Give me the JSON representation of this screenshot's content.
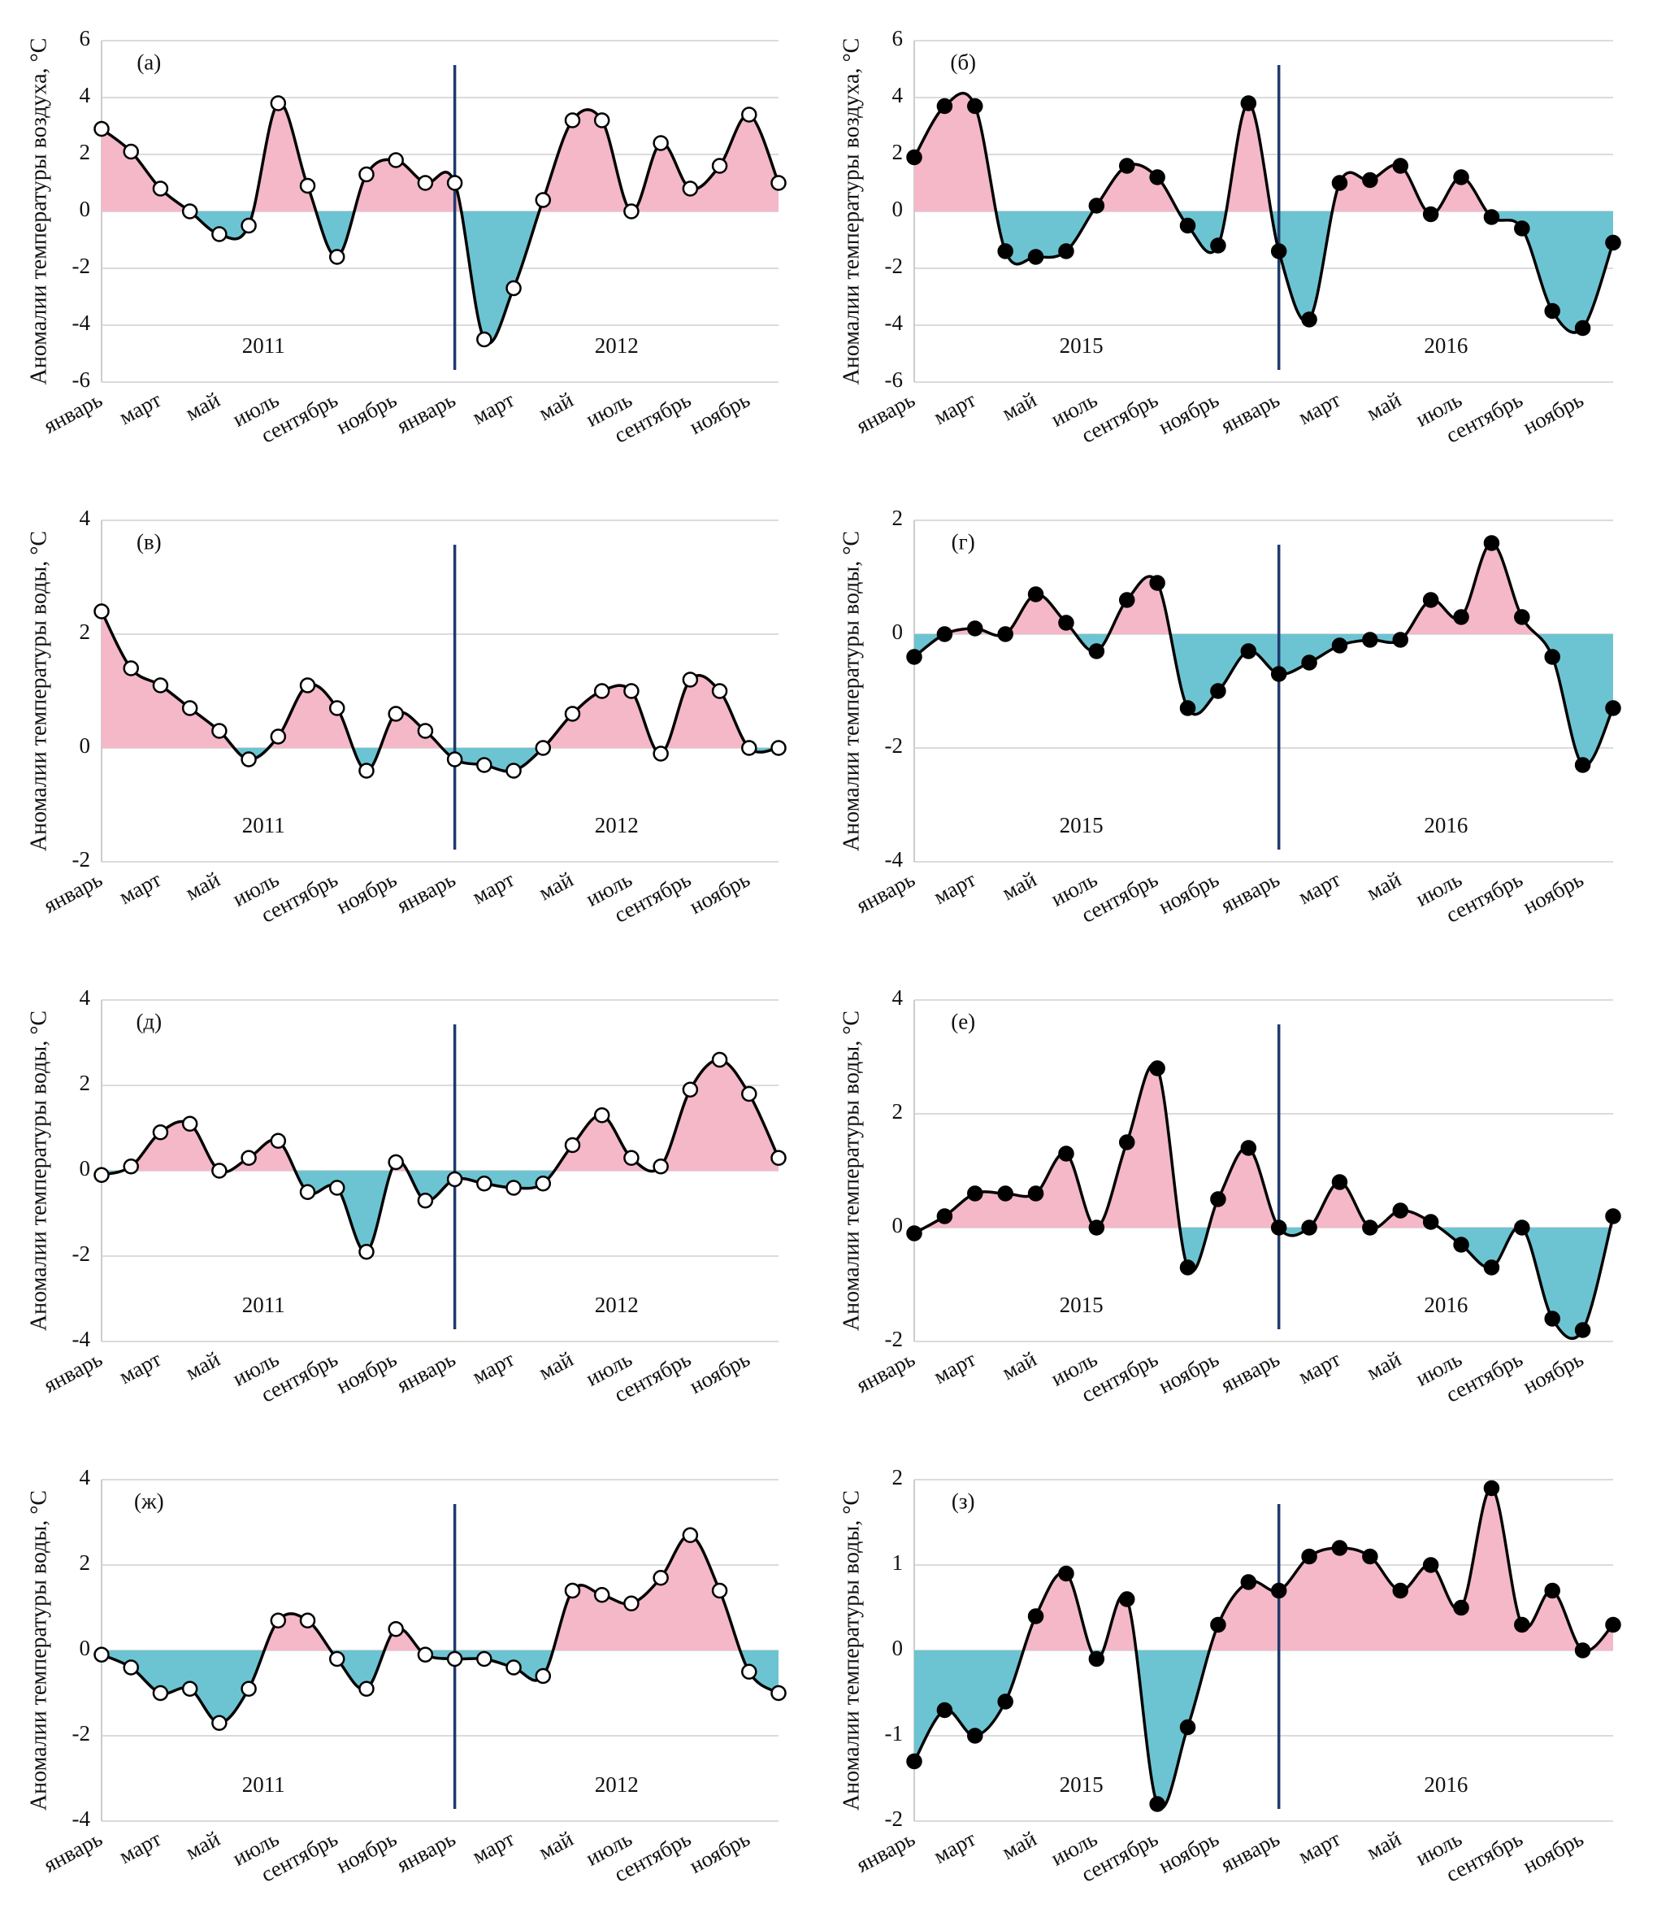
{
  "chart_data": [
    {
      "type": "area",
      "label": "(а)",
      "ylabel": "Аномалии температуры воздуха, °C",
      "year_labels": [
        "2011",
        "2012"
      ],
      "categories": [
        "январь",
        null,
        "март",
        null,
        "май",
        null,
        "июль",
        null,
        "сентябрь",
        null,
        "ноябрь",
        null,
        "январь",
        null,
        "март",
        null,
        "май",
        null,
        "июль",
        null,
        "сентябрь",
        null,
        "ноябрь",
        null
      ],
      "values": [
        2.9,
        2.1,
        0.8,
        0.0,
        -0.8,
        -0.5,
        3.8,
        0.9,
        -1.6,
        1.3,
        1.8,
        1.0,
        1.0,
        -4.5,
        -2.7,
        0.4,
        3.2,
        3.2,
        0.0,
        2.4,
        0.8,
        1.6,
        3.4,
        1.0
      ],
      "ylim": [
        -6,
        6
      ],
      "yticks": [
        -6,
        -4,
        -2,
        0,
        2,
        4,
        6
      ],
      "grid": true,
      "positive_color": "#f4b8c8",
      "negative_color": "#6cc4d2",
      "line_color": "#000000",
      "marker_fill": "#ffffff"
    },
    {
      "type": "area",
      "label": "(б)",
      "ylabel": "Аномалии температуры воздуха, °C",
      "year_labels": [
        "2015",
        "2016"
      ],
      "categories": [
        "январь",
        null,
        "март",
        null,
        "май",
        null,
        "июль",
        null,
        "сентябрь",
        null,
        "ноябрь",
        null,
        "январь",
        null,
        "март",
        null,
        "май",
        null,
        "июль",
        null,
        "сентябрь",
        null,
        "ноябрь",
        null
      ],
      "values": [
        1.9,
        3.7,
        3.7,
        -1.4,
        -1.6,
        -1.4,
        0.2,
        1.6,
        1.2,
        -0.5,
        -1.2,
        3.8,
        -1.4,
        -3.8,
        1.0,
        1.1,
        1.6,
        -0.1,
        1.2,
        -0.2,
        -0.6,
        -3.5,
        -4.1,
        -1.1
      ],
      "ylim": [
        -6,
        6
      ],
      "yticks": [
        -6,
        -4,
        -2,
        0,
        2,
        4,
        6
      ],
      "grid": true,
      "positive_color": "#f4b8c8",
      "negative_color": "#6cc4d2",
      "line_color": "#000000",
      "marker_fill": "#000000"
    },
    {
      "type": "area",
      "label": "(в)",
      "ylabel": "Аномалии температуры воды, °C",
      "year_labels": [
        "2011",
        "2012"
      ],
      "categories": [
        "январь",
        null,
        "март",
        null,
        "май",
        null,
        "июль",
        null,
        "сентябрь",
        null,
        "ноябрь",
        null,
        "январь",
        null,
        "март",
        null,
        "май",
        null,
        "июль",
        null,
        "сентябрь",
        null,
        "ноябрь",
        null
      ],
      "values": [
        2.4,
        1.4,
        1.1,
        0.7,
        0.3,
        -0.2,
        0.2,
        1.1,
        0.7,
        -0.4,
        0.6,
        0.3,
        -0.2,
        -0.3,
        -0.4,
        0.0,
        0.6,
        1.0,
        1.0,
        -0.1,
        1.2,
        1.0,
        0.0,
        0.0
      ],
      "ylim": [
        -2,
        4
      ],
      "yticks": [
        -2,
        0,
        2,
        4
      ],
      "grid": true,
      "positive_color": "#f4b8c8",
      "negative_color": "#6cc4d2",
      "line_color": "#000000",
      "marker_fill": "#ffffff"
    },
    {
      "type": "area",
      "label": "(г)",
      "ylabel": "Аномалии температуры воды, °C",
      "year_labels": [
        "2015",
        "2016"
      ],
      "categories": [
        "январь",
        null,
        "март",
        null,
        "май",
        null,
        "июль",
        null,
        "сентябрь",
        null,
        "ноябрь",
        null,
        "январь",
        null,
        "март",
        null,
        "май",
        null,
        "июль",
        null,
        "сентябрь",
        null,
        "ноябрь",
        null
      ],
      "values": [
        -0.4,
        0.0,
        0.1,
        0.0,
        0.7,
        0.2,
        -0.3,
        0.6,
        0.9,
        -1.3,
        -1.0,
        -0.3,
        -0.7,
        -0.5,
        -0.2,
        -0.1,
        -0.1,
        0.6,
        0.3,
        1.6,
        0.3,
        -0.4,
        -2.3,
        -1.3
      ],
      "ylim": [
        -4,
        2
      ],
      "yticks": [
        -4,
        -2,
        0,
        2
      ],
      "grid": true,
      "positive_color": "#f4b8c8",
      "negative_color": "#6cc4d2",
      "line_color": "#000000",
      "marker_fill": "#000000"
    },
    {
      "type": "area",
      "label": "(д)",
      "ylabel": "Аномалии температуры воды, °C",
      "year_labels": [
        "2011",
        "2012"
      ],
      "categories": [
        "январь",
        null,
        "март",
        null,
        "май",
        null,
        "июль",
        null,
        "сентябрь",
        null,
        "ноябрь",
        null,
        "январь",
        null,
        "март",
        null,
        "май",
        null,
        "июль",
        null,
        "сентябрь",
        null,
        "ноябрь",
        null
      ],
      "values": [
        -0.1,
        0.1,
        0.9,
        1.1,
        0.0,
        0.3,
        0.7,
        -0.5,
        -0.4,
        -1.9,
        0.2,
        -0.7,
        -0.2,
        -0.3,
        -0.4,
        -0.3,
        0.6,
        1.3,
        0.3,
        0.1,
        1.9,
        2.6,
        1.8,
        0.3
      ],
      "ylim": [
        -4,
        4
      ],
      "yticks": [
        -4,
        -2,
        0,
        2,
        4
      ],
      "grid": true,
      "positive_color": "#f4b8c8",
      "negative_color": "#6cc4d2",
      "line_color": "#000000",
      "marker_fill": "#ffffff"
    },
    {
      "type": "area",
      "label": "(е)",
      "ylabel": "Аномалии температуры воды, °C",
      "year_labels": [
        "2015",
        "2016"
      ],
      "categories": [
        "январь",
        null,
        "март",
        null,
        "май",
        null,
        "июль",
        null,
        "сентябрь",
        null,
        "ноябрь",
        null,
        "январь",
        null,
        "март",
        null,
        "май",
        null,
        "июль",
        null,
        "сентябрь",
        null,
        "ноябрь",
        null
      ],
      "values": [
        -0.1,
        0.2,
        0.6,
        0.6,
        0.6,
        1.3,
        0.0,
        1.5,
        2.8,
        -0.7,
        0.5,
        1.4,
        0.0,
        0.0,
        0.8,
        0.0,
        0.3,
        0.1,
        -0.3,
        -0.7,
        0.0,
        -1.6,
        -1.8,
        0.2
      ],
      "ylim": [
        -2,
        4
      ],
      "yticks": [
        -2,
        0,
        2,
        4
      ],
      "grid": true,
      "positive_color": "#f4b8c8",
      "negative_color": "#6cc4d2",
      "line_color": "#000000",
      "marker_fill": "#000000"
    },
    {
      "type": "area",
      "label": "(ж)",
      "ylabel": "Аномалии температуры воды, °C",
      "year_labels": [
        "2011",
        "2012"
      ],
      "categories": [
        "январь",
        null,
        "март",
        null,
        "май",
        null,
        "июль",
        null,
        "сентябрь",
        null,
        "ноябрь",
        null,
        "январь",
        null,
        "март",
        null,
        "май",
        null,
        "июль",
        null,
        "сентябрь",
        null,
        "ноябрь",
        null
      ],
      "values": [
        -0.1,
        -0.4,
        -1.0,
        -0.9,
        -1.7,
        -0.9,
        0.7,
        0.7,
        -0.2,
        -0.9,
        0.5,
        -0.1,
        -0.2,
        -0.2,
        -0.4,
        -0.6,
        1.4,
        1.3,
        1.1,
        1.7,
        2.7,
        1.4,
        -0.5,
        -1.0
      ],
      "ylim": [
        -4,
        4
      ],
      "yticks": [
        -4,
        -2,
        0,
        2,
        4
      ],
      "grid": true,
      "positive_color": "#f4b8c8",
      "negative_color": "#6cc4d2",
      "line_color": "#000000",
      "marker_fill": "#ffffff"
    },
    {
      "type": "area",
      "label": "(з)",
      "ylabel": "Аномалии температуры воды, °C",
      "year_labels": [
        "2015",
        "2016"
      ],
      "categories": [
        "январь",
        null,
        "март",
        null,
        "май",
        null,
        "июль",
        null,
        "сентябрь",
        null,
        "ноябрь",
        null,
        "январь",
        null,
        "март",
        null,
        "май",
        null,
        "июль",
        null,
        "сентябрь",
        null,
        "ноябрь",
        null
      ],
      "values": [
        -1.3,
        -0.7,
        -1.0,
        -0.6,
        0.4,
        0.9,
        -0.1,
        0.6,
        -1.8,
        -0.9,
        0.3,
        0.8,
        0.7,
        1.1,
        1.2,
        1.1,
        0.7,
        1.0,
        0.5,
        1.9,
        0.3,
        0.7,
        0.0,
        0.3
      ],
      "ylim": [
        -2,
        2
      ],
      "yticks": [
        -2,
        -1,
        0,
        1,
        2
      ],
      "grid": true,
      "positive_color": "#f4b8c8",
      "negative_color": "#6cc4d2",
      "line_color": "#000000",
      "marker_fill": "#000000"
    }
  ]
}
